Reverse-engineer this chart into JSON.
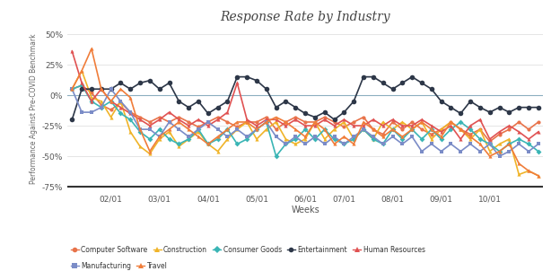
{
  "title": "Response Rate by Industry",
  "xlabel": "Weeks",
  "ylabel": "Performance Against Pre-COVID Benchmark",
  "ylim": [
    -78,
    55
  ],
  "yticks": [
    -75,
    -50,
    -25,
    0,
    25,
    50
  ],
  "ytick_labels": [
    "-75%",
    "-50%",
    "-25%",
    "0%",
    "25%",
    "50%"
  ],
  "x_tick_labels": [
    "02/01",
    "03/01",
    "04/01",
    "05/01",
    "06/01",
    "07/01",
    "08/01",
    "09/01",
    "10/01"
  ],
  "hline_color": "#8cafc0",
  "background_color": "#ffffff",
  "series": {
    "Computer Software": {
      "color": "#e8734a",
      "marker": "o",
      "markersize": 3,
      "values": [
        5,
        8,
        2,
        -8,
        -12,
        -6,
        -14,
        -18,
        -22,
        -18,
        -22,
        -18,
        -22,
        -26,
        -22,
        -18,
        -22,
        -26,
        -22,
        -22,
        -18,
        -28,
        -22,
        -18,
        -22,
        -22,
        -18,
        -22,
        -26,
        -22,
        -18,
        -28,
        -32,
        -22,
        -28,
        -22,
        -28,
        -32,
        -28,
        -22,
        -28,
        -32,
        -28,
        -38,
        -32,
        -28,
        -22,
        -28,
        -22
      ]
    },
    "Construction": {
      "color": "#f0b429",
      "marker": "^",
      "markersize": 3,
      "values": [
        5,
        20,
        -2,
        -5,
        -18,
        -5,
        -30,
        -42,
        -48,
        -36,
        -30,
        -42,
        -36,
        -30,
        -40,
        -46,
        -36,
        -28,
        -22,
        -36,
        -28,
        -22,
        -36,
        -40,
        -36,
        -22,
        -36,
        -28,
        -22,
        -36,
        -28,
        -36,
        -22,
        -28,
        -22,
        -28,
        -22,
        -36,
        -28,
        -22,
        -28,
        -36,
        -28,
        -46,
        -40,
        -36,
        -65,
        -62,
        -66
      ]
    },
    "Consumer Goods": {
      "color": "#3ab5b5",
      "marker": "D",
      "markersize": 3,
      "values": [
        5,
        8,
        -5,
        -10,
        -5,
        -15,
        -20,
        -30,
        -36,
        -28,
        -36,
        -40,
        -36,
        -28,
        -40,
        -36,
        -28,
        -40,
        -36,
        -28,
        -22,
        -50,
        -40,
        -36,
        -28,
        -36,
        -28,
        -36,
        -40,
        -36,
        -28,
        -36,
        -40,
        -28,
        -36,
        -28,
        -36,
        -28,
        -36,
        -28,
        -22,
        -28,
        -36,
        -40,
        -46,
        -40,
        -36,
        -40,
        -46
      ]
    },
    "Entertainment": {
      "color": "#2d3748",
      "marker": "o",
      "markersize": 4,
      "values": [
        -20,
        5,
        5,
        5,
        5,
        10,
        5,
        10,
        12,
        5,
        10,
        -5,
        -10,
        -5,
        -15,
        -10,
        -5,
        15,
        15,
        12,
        5,
        -10,
        -5,
        -10,
        -15,
        -18,
        -14,
        -20,
        -14,
        -5,
        15,
        15,
        10,
        5,
        10,
        15,
        10,
        5,
        -5,
        -10,
        -15,
        -5,
        -10,
        -14,
        -10,
        -14,
        -10,
        -10,
        -10
      ]
    },
    "Human Resources": {
      "color": "#e05252",
      "marker": "^",
      "markersize": 3,
      "values": [
        36,
        10,
        -5,
        5,
        -5,
        -10,
        -15,
        -20,
        -25,
        -20,
        -14,
        -20,
        -25,
        -20,
        -25,
        -20,
        -14,
        10,
        -20,
        -25,
        -20,
        -20,
        -25,
        -20,
        -25,
        -25,
        -20,
        -25,
        -20,
        -25,
        -25,
        -20,
        -25,
        -20,
        -25,
        -25,
        -20,
        -25,
        -30,
        -25,
        -36,
        -25,
        -20,
        -36,
        -30,
        -25,
        -30,
        -36,
        -30
      ]
    },
    "Manufacturing": {
      "color": "#7b8cc7",
      "marker": "s",
      "markersize": 3,
      "values": [
        5,
        -14,
        -14,
        -10,
        5,
        -5,
        -14,
        -28,
        -28,
        -34,
        -22,
        -28,
        -34,
        -28,
        -22,
        -28,
        -34,
        -28,
        -34,
        -28,
        -22,
        -34,
        -40,
        -34,
        -40,
        -34,
        -40,
        -34,
        -40,
        -34,
        -28,
        -34,
        -40,
        -34,
        -40,
        -34,
        -46,
        -40,
        -46,
        -40,
        -46,
        -40,
        -46,
        -40,
        -50,
        -46,
        -40,
        -46,
        -40
      ]
    },
    "Travel": {
      "color": "#f07d3a",
      "marker": "^",
      "markersize": 3,
      "values": [
        5,
        20,
        38,
        5,
        -5,
        5,
        -2,
        -28,
        -46,
        -34,
        -28,
        -22,
        -28,
        -34,
        -40,
        -34,
        -28,
        -22,
        -22,
        -28,
        -22,
        -18,
        -22,
        -28,
        -34,
        -22,
        -28,
        -40,
        -34,
        -40,
        -22,
        -28,
        -34,
        -28,
        -34,
        -28,
        -22,
        -28,
        -34,
        -22,
        -28,
        -34,
        -40,
        -50,
        -46,
        -40,
        -56,
        -62,
        -66
      ]
    }
  },
  "legend_row1": [
    "Computer Software",
    "Construction",
    "Consumer Goods",
    "Entertainment",
    "Human Resources"
  ],
  "legend_row2": [
    "Manufacturing",
    "Travel"
  ],
  "series_colors": {
    "Computer Software": "#e8734a",
    "Construction": "#f0b429",
    "Consumer Goods": "#3ab5b5",
    "Entertainment": "#2d3748",
    "Human Resources": "#e05252",
    "Manufacturing": "#7b8cc7",
    "Travel": "#f07d3a"
  },
  "series_markers": {
    "Computer Software": "o",
    "Construction": "^",
    "Consumer Goods": "D",
    "Entertainment": "o",
    "Human Resources": "^",
    "Manufacturing": "s",
    "Travel": "^"
  }
}
